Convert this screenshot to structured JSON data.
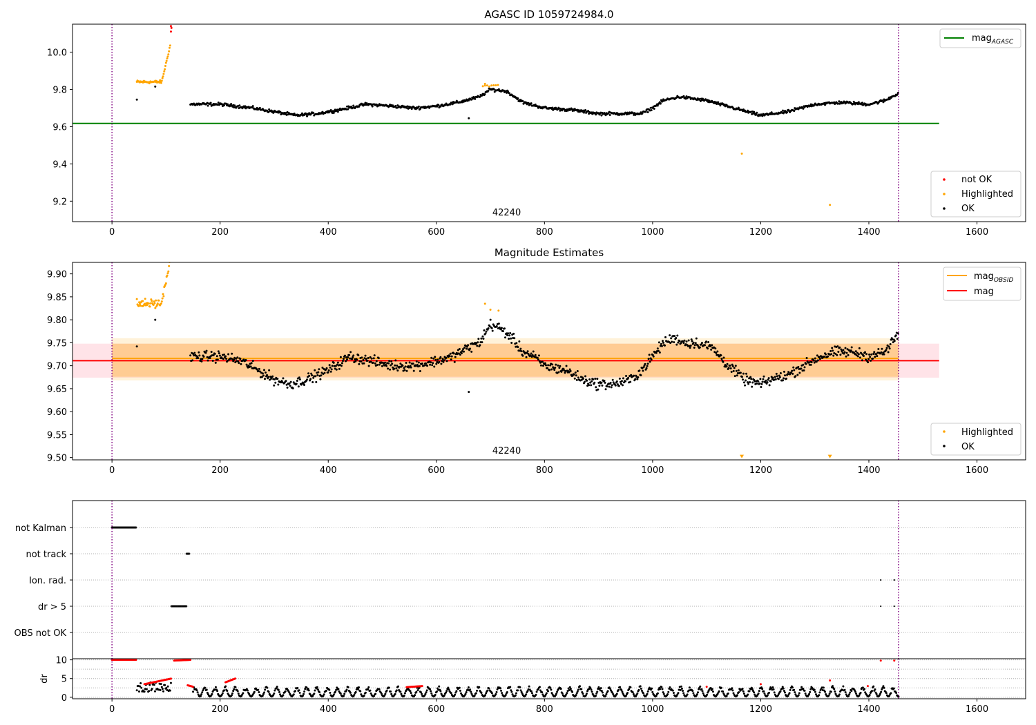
{
  "chart_data": [
    {
      "panel": "magnitude-history",
      "type": "scatter",
      "title": "AGASC ID 1059724984.0",
      "xlim": [
        -73,
        1690
      ],
      "ylim": [
        9.09,
        10.15
      ],
      "xticks": [
        0,
        200,
        400,
        600,
        800,
        1000,
        1200,
        1400,
        1600
      ],
      "yticks": [
        9.2,
        9.4,
        9.6,
        9.8,
        10.0
      ],
      "ytick_labels": [
        "9.2",
        "9.4",
        "9.6",
        "9.8",
        "10.0"
      ],
      "annotation": "42240",
      "vlines": [
        0,
        1455
      ],
      "hline": {
        "name": "mag",
        "subscript": "AGASC",
        "y": 9.617,
        "x": [
          -73,
          1530
        ],
        "color": "#008000"
      },
      "colors": {
        "not_ok": "#ff0000",
        "highlighted": "#ffa500",
        "ok": "#000000",
        "vline": "#800080"
      },
      "legend_lines": [
        {
          "name": "mag",
          "subscript": "AGASC",
          "color": "#008000"
        }
      ],
      "legend_markers": [
        {
          "name": "not OK",
          "color": "#ff0000"
        },
        {
          "name": "Highlighted",
          "color": "#ffa500"
        },
        {
          "name": "OK",
          "color": "#000000"
        }
      ],
      "series_trend": {
        "name": "OK",
        "x": [
          145,
          200,
          260,
          300,
          340,
          380,
          420,
          470,
          520,
          560,
          600,
          640,
          680,
          700,
          730,
          760,
          800,
          850,
          900,
          940,
          980,
          1000,
          1020,
          1050,
          1100,
          1150,
          1200,
          1250,
          1300,
          1350,
          1400,
          1430,
          1455
        ],
        "y": [
          9.72,
          9.72,
          9.7,
          9.68,
          9.66,
          9.67,
          9.69,
          9.72,
          9.71,
          9.7,
          9.71,
          9.73,
          9.76,
          9.8,
          9.79,
          9.73,
          9.7,
          9.69,
          9.67,
          9.67,
          9.67,
          9.7,
          9.74,
          9.76,
          9.74,
          9.7,
          9.66,
          9.68,
          9.72,
          9.73,
          9.72,
          9.74,
          9.78
        ]
      },
      "series_extra": {
        "ok": [
          {
            "x": 46,
            "y": 9.745
          },
          {
            "x": 660,
            "y": 9.645
          },
          {
            "x": 80,
            "y": 9.815
          }
        ],
        "highlighted": [
          {
            "x": 1165,
            "y": 9.455
          },
          {
            "x": 1328,
            "y": 9.18
          },
          {
            "x": 690,
            "y": 9.83
          }
        ],
        "not_ok": [
          {
            "x": 109,
            "y": 10.11
          },
          {
            "x": 109,
            "y": 10.14
          },
          {
            "x": 110,
            "y": 10.13
          }
        ]
      }
    },
    {
      "panel": "magnitude-estimates",
      "type": "scatter",
      "title": "Magnitude Estimates",
      "xlim": [
        -73,
        1690
      ],
      "ylim": [
        9.495,
        9.925
      ],
      "xticks": [
        0,
        200,
        400,
        600,
        800,
        1000,
        1200,
        1400,
        1600
      ],
      "yticks": [
        9.5,
        9.55,
        9.6,
        9.65,
        9.7,
        9.75,
        9.8,
        9.85,
        9.9
      ],
      "ytick_labels": [
        "9.50",
        "9.55",
        "9.60",
        "9.65",
        "9.70",
        "9.75",
        "9.80",
        "9.85",
        "9.90"
      ],
      "annotation": "42240",
      "vlines": [
        0,
        1455
      ],
      "bands": [
        {
          "name": "mag",
          "y": [
            9.674,
            9.748
          ],
          "x": [
            -73,
            1530
          ],
          "color": "#ffc0cb",
          "opacity": 0.45
        },
        {
          "name": "mag_OBSID",
          "y": [
            9.668,
            9.76
          ],
          "x": [
            0,
            1455
          ],
          "color": "#ffa500",
          "opacity": 0.15
        },
        {
          "name": "mag_OBSID_inner",
          "y": [
            9.676,
            9.748
          ],
          "x": [
            0,
            1455
          ],
          "color": "#ffa500",
          "opacity": 0.25
        }
      ],
      "lines": [
        {
          "name": "mag",
          "subscript": "OBSID",
          "y": 9.716,
          "x": [
            0,
            1455
          ],
          "color": "#ffa500"
        },
        {
          "name": "mag",
          "y": 9.711,
          "x": [
            -73,
            1530
          ],
          "color": "#ff0000"
        }
      ],
      "legend_lines": [
        {
          "name": "mag",
          "subscript": "OBSID",
          "color": "#ffa500"
        },
        {
          "name": "mag",
          "color": "#ff0000"
        }
      ],
      "legend_markers": [
        {
          "name": "Highlighted",
          "color": "#ffa500"
        },
        {
          "name": "OK",
          "color": "#000000"
        }
      ],
      "series_trend": {
        "name": "OK",
        "x": [
          145,
          200,
          240,
          270,
          300,
          330,
          360,
          400,
          440,
          480,
          520,
          560,
          600,
          630,
          660,
          680,
          700,
          720,
          740,
          760,
          780,
          800,
          840,
          870,
          900,
          930,
          960,
          980,
          1000,
          1020,
          1040,
          1060,
          1080,
          1110,
          1140,
          1170,
          1200,
          1220,
          1250,
          1280,
          1310,
          1340,
          1370,
          1400,
          1430,
          1455
        ],
        "y": [
          9.72,
          9.72,
          9.71,
          9.69,
          9.67,
          9.66,
          9.67,
          9.69,
          9.72,
          9.71,
          9.7,
          9.7,
          9.71,
          9.72,
          9.74,
          9.75,
          9.79,
          9.78,
          9.76,
          9.73,
          9.72,
          9.7,
          9.69,
          9.67,
          9.66,
          9.66,
          9.67,
          9.69,
          9.72,
          9.75,
          9.76,
          9.75,
          9.75,
          9.74,
          9.7,
          9.67,
          9.66,
          9.67,
          9.68,
          9.7,
          9.72,
          9.73,
          9.73,
          9.72,
          9.73,
          9.77
        ]
      },
      "series_extra": {
        "ok": [
          {
            "x": 46,
            "y": 9.742
          },
          {
            "x": 660,
            "y": 9.643
          },
          {
            "x": 80,
            "y": 9.8
          }
        ],
        "highlighted": [
          {
            "x": 690,
            "y": 9.835
          },
          {
            "x": 700,
            "y": 9.822
          },
          {
            "x": 715,
            "y": 9.82
          }
        ],
        "highlighted_markers_at_floor": [
          {
            "x": 1165,
            "y": 9.5
          },
          {
            "x": 1328,
            "y": 9.5
          }
        ]
      }
    },
    {
      "panel": "flags",
      "type": "scatter",
      "xlim": [
        -73,
        1690
      ],
      "categories": [
        "not Kalman",
        "not track",
        "Ion. rad.",
        "dr > 5",
        "OBS not OK"
      ],
      "segments": [
        {
          "category": "not Kalman",
          "x": [
            0,
            45
          ]
        },
        {
          "category": "not track",
          "x": [
            138,
            143
          ]
        },
        {
          "category": "dr > 5",
          "x": [
            110,
            138
          ]
        }
      ],
      "points": [
        {
          "category": "Ion. rad.",
          "x": [
            1422,
            1447
          ]
        },
        {
          "category": "dr > 5",
          "x": [
            1422,
            1447
          ]
        }
      ],
      "vlines": [
        0,
        1455
      ]
    },
    {
      "panel": "dr",
      "type": "scatter",
      "ylabel": "dr",
      "xlim": [
        -73,
        1690
      ],
      "ylim": [
        -0.4,
        10.3
      ],
      "xticks": [
        0,
        200,
        400,
        600,
        800,
        1000,
        1200,
        1400,
        1600
      ],
      "yticks": [
        0,
        5,
        10
      ],
      "ytick_labels": [
        "0",
        "5",
        "10"
      ],
      "vlines": [
        0,
        1455
      ],
      "red_segments": [
        {
          "x": [
            0,
            45
          ],
          "y": [
            10,
            10
          ]
        },
        {
          "x": [
            115,
            145
          ],
          "y": [
            9.8,
            10
          ]
        },
        {
          "x": [
            60,
            110
          ],
          "y": [
            3.5,
            5.0
          ]
        },
        {
          "x": [
            140,
            150
          ],
          "y": [
            3.2,
            2.8
          ]
        },
        {
          "x": [
            210,
            228
          ],
          "y": [
            4.0,
            5.0
          ]
        },
        {
          "x": [
            545,
            575
          ],
          "y": [
            2.7,
            3.0
          ]
        }
      ],
      "red_points": [
        {
          "x": 1422,
          "y": 9.8
        },
        {
          "x": 1447,
          "y": 9.8
        },
        {
          "x": 1328,
          "y": 4.5
        },
        {
          "x": 1200,
          "y": 3.5
        },
        {
          "x": 1398,
          "y": 3.0
        },
        {
          "x": 1100,
          "y": 2.8
        }
      ],
      "black_base": {
        "ymin": 0.2,
        "ymax": 3.0
      }
    }
  ]
}
